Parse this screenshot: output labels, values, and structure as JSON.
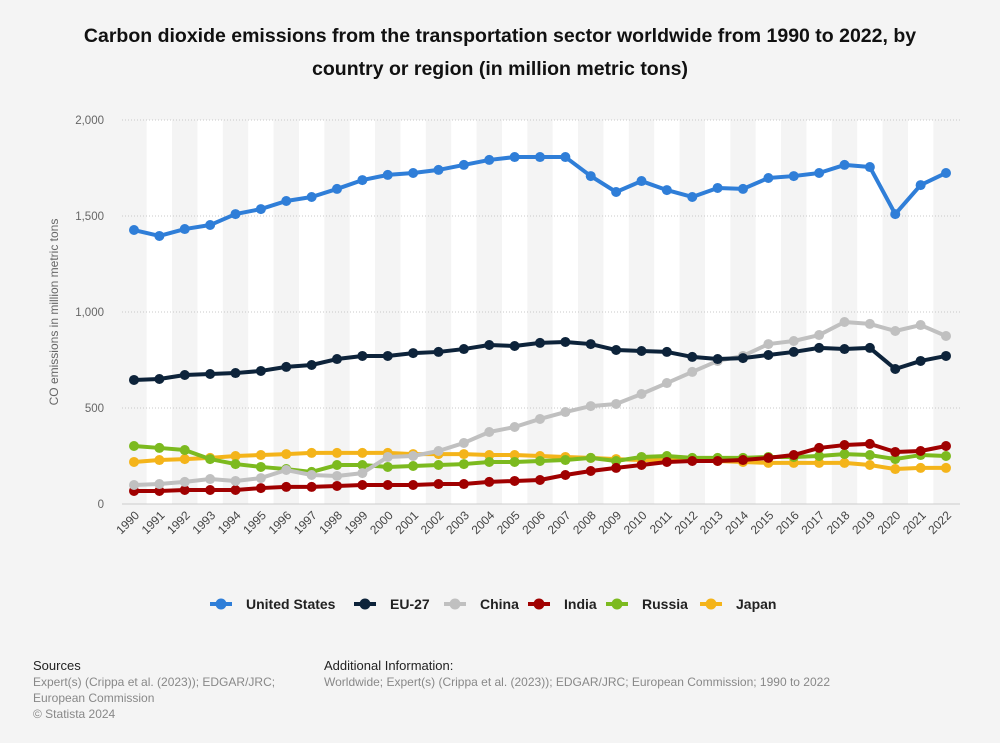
{
  "chart_data": {
    "type": "line",
    "title": "Carbon dioxide emissions from the transportation sector worldwide from 1990 to 2022, by country or region (in million metric tons)",
    "xlabel": "",
    "ylabel": "CO emissions in million metric tons",
    "ylim": [
      0,
      2000
    ],
    "yticks": [
      0,
      500,
      1000,
      1500,
      2000
    ],
    "ytick_labels": [
      "0",
      "500",
      "1,000",
      "1,500",
      "2,000"
    ],
    "grid": true,
    "legend": "bottom",
    "x": [
      "1990",
      "1991",
      "1992",
      "1993",
      "1994",
      "1995",
      "1996",
      "1997",
      "1998",
      "1999",
      "2000",
      "2001",
      "2002",
      "2003",
      "2004",
      "2005",
      "2006",
      "2007",
      "2008",
      "2009",
      "2010",
      "2011",
      "2012",
      "2013",
      "2014",
      "2015",
      "2016",
      "2017",
      "2018",
      "2019",
      "2020",
      "2021",
      "2022"
    ],
    "series": [
      {
        "name": "United States",
        "color": "#2f7ed8",
        "values": [
          1427,
          1396,
          1432,
          1453,
          1510,
          1536,
          1578,
          1599,
          1641,
          1687,
          1714,
          1724,
          1740,
          1766,
          1792,
          1807,
          1807,
          1807,
          1708,
          1625,
          1682,
          1635,
          1599,
          1646,
          1641,
          1698,
          1708,
          1724,
          1766,
          1755,
          1510,
          1661,
          1724
        ]
      },
      {
        "name": "EU-27",
        "color": "#0d233a",
        "values": [
          646,
          651,
          672,
          677,
          682,
          693,
          714,
          724,
          755,
          771,
          771,
          786,
          792,
          807,
          828,
          823,
          839,
          844,
          833,
          802,
          797,
          792,
          766,
          755,
          760,
          776,
          792,
          813,
          807,
          813,
          703,
          745,
          771
        ]
      },
      {
        "name": "China",
        "color": "#c0c0c0",
        "values": [
          99,
          104,
          115,
          130,
          120,
          135,
          177,
          151,
          146,
          161,
          245,
          250,
          276,
          318,
          375,
          401,
          443,
          479,
          510,
          521,
          573,
          630,
          688,
          745,
          771,
          833,
          849,
          880,
          948,
          938,
          901,
          932,
          875
        ]
      },
      {
        "name": "India",
        "color": "#a00000",
        "values": [
          68,
          68,
          73,
          73,
          73,
          83,
          89,
          89,
          94,
          99,
          99,
          99,
          104,
          104,
          115,
          120,
          125,
          151,
          172,
          188,
          203,
          219,
          224,
          224,
          229,
          240,
          255,
          292,
          307,
          313,
          271,
          276,
          302
        ]
      },
      {
        "name": "Russia",
        "color": "#7cba1f",
        "values": [
          302,
          292,
          281,
          234,
          208,
          193,
          182,
          167,
          203,
          203,
          193,
          198,
          203,
          208,
          219,
          219,
          224,
          229,
          240,
          224,
          245,
          250,
          240,
          240,
          240,
          245,
          245,
          250,
          260,
          255,
          234,
          255,
          250
        ]
      },
      {
        "name": "Japan",
        "color": "#f4b41a",
        "values": [
          219,
          229,
          234,
          240,
          250,
          255,
          260,
          266,
          266,
          266,
          266,
          260,
          260,
          260,
          255,
          255,
          250,
          245,
          240,
          234,
          229,
          229,
          229,
          224,
          219,
          214,
          214,
          214,
          214,
          203,
          182,
          188,
          188
        ]
      }
    ]
  },
  "footer": {
    "sources_heading": "Sources",
    "sources_lines": [
      "Expert(s) (Crippa et al. (2023)); EDGAR/JRC;",
      "European Commission",
      "© Statista 2024"
    ],
    "info_heading": "Additional Information:",
    "info_text": "Worldwide; Expert(s) (Crippa et al. (2023)); EDGAR/JRC; European Commission; 1990 to 2022"
  }
}
